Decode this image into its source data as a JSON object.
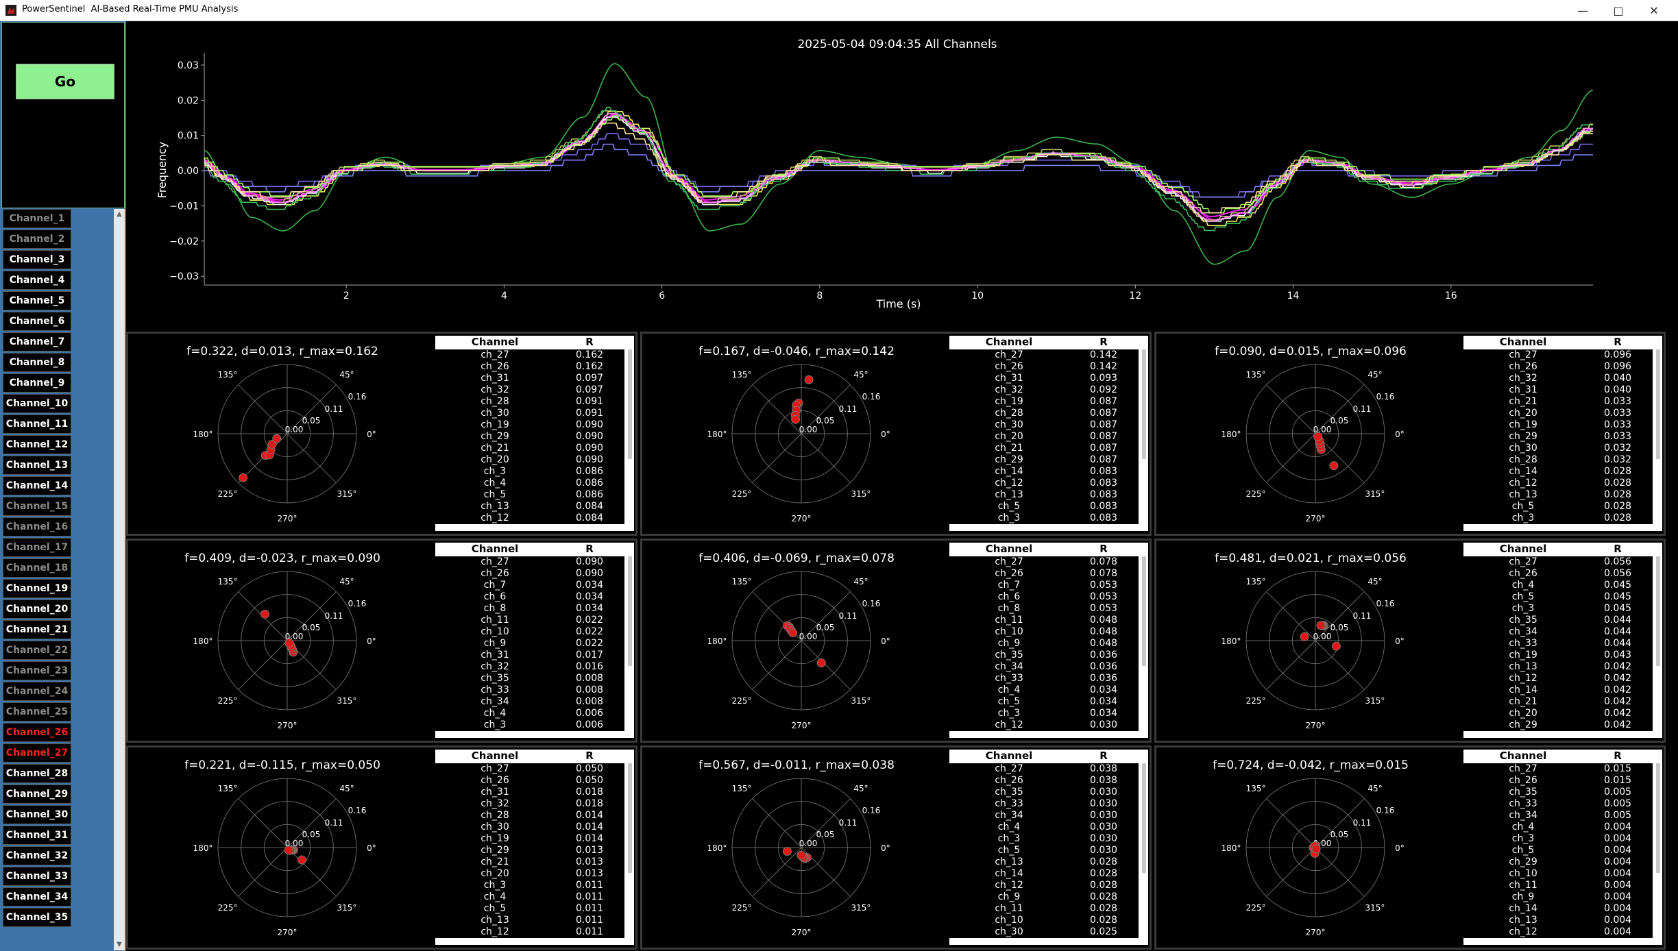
{
  "window": {
    "title": "PowerSentinel  AI-Based Real-Time PMU Analysis",
    "minimize_icon": "minimize-icon",
    "maximize_icon": "maximize-icon",
    "close_icon": "close-icon"
  },
  "go_label": "Go",
  "channels": [
    {
      "label": "Channel_1",
      "state": "disabled"
    },
    {
      "label": "Channel_2",
      "state": "disabled"
    },
    {
      "label": "Channel_3",
      "state": "active"
    },
    {
      "label": "Channel_4",
      "state": "active"
    },
    {
      "label": "Channel_5",
      "state": "active"
    },
    {
      "label": "Channel_6",
      "state": "active"
    },
    {
      "label": "Channel_7",
      "state": "active"
    },
    {
      "label": "Channel_8",
      "state": "active"
    },
    {
      "label": "Channel_9",
      "state": "active"
    },
    {
      "label": "Channel_10",
      "state": "active"
    },
    {
      "label": "Channel_11",
      "state": "active"
    },
    {
      "label": "Channel_12",
      "state": "active"
    },
    {
      "label": "Channel_13",
      "state": "active"
    },
    {
      "label": "Channel_14",
      "state": "active"
    },
    {
      "label": "Channel_15",
      "state": "disabled"
    },
    {
      "label": "Channel_16",
      "state": "disabled"
    },
    {
      "label": "Channel_17",
      "state": "disabled"
    },
    {
      "label": "Channel_18",
      "state": "disabled"
    },
    {
      "label": "Channel_19",
      "state": "active"
    },
    {
      "label": "Channel_20",
      "state": "active"
    },
    {
      "label": "Channel_21",
      "state": "active"
    },
    {
      "label": "Channel_22",
      "state": "disabled"
    },
    {
      "label": "Channel_23",
      "state": "disabled"
    },
    {
      "label": "Channel_24",
      "state": "disabled"
    },
    {
      "label": "Channel_25",
      "state": "disabled"
    },
    {
      "label": "Channel_26",
      "state": "alarm"
    },
    {
      "label": "Channel_27",
      "state": "alarm"
    },
    {
      "label": "Channel_28",
      "state": "active"
    },
    {
      "label": "Channel_29",
      "state": "active"
    },
    {
      "label": "Channel_30",
      "state": "active"
    },
    {
      "label": "Channel_31",
      "state": "active"
    },
    {
      "label": "Channel_32",
      "state": "active"
    },
    {
      "label": "Channel_33",
      "state": "active"
    },
    {
      "label": "Channel_34",
      "state": "active"
    },
    {
      "label": "Channel_35",
      "state": "active"
    }
  ],
  "channel_colors": {
    "active": "#ffffff",
    "disabled": "#8a8a8a",
    "alarm": "#ff2020"
  },
  "chart_data": {
    "type": "line",
    "title": "2025-05-04 09:04:35    All Channels",
    "xlabel": "Time (s)",
    "ylabel": "Frequency",
    "xlim": [
      0.2,
      17.8
    ],
    "ylim": [
      -0.0325,
      0.0335
    ],
    "xticks": [
      2,
      4,
      6,
      8,
      10,
      12,
      14,
      16
    ],
    "yticks": [
      -0.03,
      -0.02,
      -0.01,
      0.0,
      0.01,
      0.02,
      0.03
    ],
    "ytick_labels": [
      "−0.03",
      "−0.02",
      "−0.01",
      "0.00",
      "0.01",
      "0.02",
      "0.03"
    ],
    "grid": false,
    "base_x": [
      0.2,
      0.5,
      0.8,
      1.2,
      1.6,
      2.0,
      2.5,
      3.0,
      3.5,
      4.0,
      4.5,
      5.0,
      5.4,
      5.8,
      6.2,
      6.6,
      7.0,
      7.5,
      8.0,
      8.5,
      9.0,
      9.5,
      10.0,
      10.5,
      11.0,
      11.5,
      12.0,
      12.5,
      13.0,
      13.4,
      13.8,
      14.2,
      14.6,
      15.0,
      15.5,
      16.0,
      16.5,
      17.0,
      17.4,
      17.8
    ],
    "base_y": [
      0.003,
      -0.002,
      -0.007,
      -0.009,
      -0.006,
      0.0,
      0.002,
      0.0,
      0.0,
      0.001,
      0.002,
      0.008,
      0.016,
      0.011,
      -0.002,
      -0.009,
      -0.008,
      -0.002,
      0.003,
      0.002,
      0.001,
      0.0,
      0.001,
      0.003,
      0.005,
      0.004,
      0.001,
      -0.006,
      -0.014,
      -0.012,
      -0.004,
      0.003,
      0.002,
      -0.002,
      -0.004,
      -0.002,
      0.0,
      0.002,
      0.006,
      0.012
    ],
    "series": [
      {
        "color": "#3cb44b",
        "scale": 1.9,
        "shift": 0.0,
        "step": 0.0
      },
      {
        "color": "#7b68ee",
        "scale": 0.6,
        "shift": 0.001,
        "step": 0.0015
      },
      {
        "color": "#8080ff",
        "scale": 0.5,
        "shift": -0.002,
        "step": 0.0015
      },
      {
        "color": "#ff00ff",
        "scale": 1.0,
        "shift": 0.0,
        "step": 0.0
      },
      {
        "color": "#e020e0",
        "scale": 0.95,
        "shift": 0.0005,
        "step": 0.0
      },
      {
        "color": "#c0c060",
        "scale": 1.05,
        "shift": 0.001,
        "step": 0.001
      },
      {
        "color": "#f0f060",
        "scale": 1.1,
        "shift": -0.0005,
        "step": 0.0012
      },
      {
        "color": "#ffffff",
        "scale": 1.0,
        "shift": -0.001,
        "step": 0.0008
      },
      {
        "color": "#40c060",
        "scale": 1.15,
        "shift": -0.0015,
        "step": 0.001
      },
      {
        "color": "#a0ff60",
        "scale": 0.9,
        "shift": 0.0015,
        "step": 0.0012
      },
      {
        "color": "#ff8cff",
        "scale": 1.02,
        "shift": 0.0,
        "step": 0.0006
      },
      {
        "color": "#ffe0a0",
        "scale": 0.85,
        "shift": 0.0,
        "step": 0.0015
      }
    ]
  },
  "polar_axis": {
    "r_tick_labels": [
      "0.00",
      "0.05",
      "0.11",
      "0.16"
    ],
    "angle_labels": [
      "0°",
      "45°",
      "135°",
      "180°",
      "225°",
      "270°",
      "315°"
    ],
    "point_color": "#e01818"
  },
  "panels": [
    {
      "title": "f=0.322, d=0.013, r_max=0.162",
      "points": [
        [
          0.162,
          225
        ],
        [
          0.08,
          225
        ],
        [
          0.072,
          230
        ],
        [
          0.06,
          225
        ],
        [
          0.048,
          215
        ],
        [
          0.03,
          205
        ]
      ],
      "headers": [
        "Channel",
        "R"
      ],
      "rows": [
        [
          "ch_27",
          "0.162"
        ],
        [
          "ch_26",
          "0.162"
        ],
        [
          "ch_31",
          "0.097"
        ],
        [
          "ch_32",
          "0.097"
        ],
        [
          "ch_28",
          "0.091"
        ],
        [
          "ch_30",
          "0.091"
        ],
        [
          "ch_19",
          "0.090"
        ],
        [
          "ch_29",
          "0.090"
        ],
        [
          "ch_21",
          "0.090"
        ],
        [
          "ch_20",
          "0.090"
        ],
        [
          "ch_3",
          "0.086"
        ],
        [
          "ch_4",
          "0.086"
        ],
        [
          "ch_5",
          "0.086"
        ],
        [
          "ch_13",
          "0.084"
        ],
        [
          "ch_12",
          "0.084"
        ]
      ]
    },
    {
      "title": "f=0.167, d=-0.046, r_max=0.142",
      "points": [
        [
          0.142,
          82
        ],
        [
          0.08,
          95
        ],
        [
          0.075,
          100
        ],
        [
          0.062,
          102
        ],
        [
          0.05,
          108
        ],
        [
          0.04,
          112
        ]
      ],
      "headers": [
        "Channel",
        "R"
      ],
      "rows": [
        [
          "ch_27",
          "0.142"
        ],
        [
          "ch_26",
          "0.142"
        ],
        [
          "ch_31",
          "0.093"
        ],
        [
          "ch_32",
          "0.092"
        ],
        [
          "ch_19",
          "0.087"
        ],
        [
          "ch_28",
          "0.087"
        ],
        [
          "ch_30",
          "0.087"
        ],
        [
          "ch_20",
          "0.087"
        ],
        [
          "ch_21",
          "0.087"
        ],
        [
          "ch_29",
          "0.087"
        ],
        [
          "ch_14",
          "0.083"
        ],
        [
          "ch_12",
          "0.083"
        ],
        [
          "ch_13",
          "0.083"
        ],
        [
          "ch_5",
          "0.083"
        ],
        [
          "ch_3",
          "0.083"
        ]
      ]
    },
    {
      "title": "f=0.090, d=0.015, r_max=0.096",
      "points": [
        [
          0.096,
          300
        ],
        [
          0.044,
          290
        ],
        [
          0.036,
          292
        ],
        [
          0.028,
          295
        ],
        [
          0.02,
          300
        ],
        [
          0.01,
          310
        ]
      ],
      "headers": [
        "Channel",
        "R"
      ],
      "rows": [
        [
          "ch_27",
          "0.096"
        ],
        [
          "ch_26",
          "0.096"
        ],
        [
          "ch_32",
          "0.040"
        ],
        [
          "ch_31",
          "0.040"
        ],
        [
          "ch_21",
          "0.033"
        ],
        [
          "ch_20",
          "0.033"
        ],
        [
          "ch_19",
          "0.033"
        ],
        [
          "ch_29",
          "0.033"
        ],
        [
          "ch_30",
          "0.032"
        ],
        [
          "ch_28",
          "0.032"
        ],
        [
          "ch_14",
          "0.028"
        ],
        [
          "ch_12",
          "0.028"
        ],
        [
          "ch_13",
          "0.028"
        ],
        [
          "ch_5",
          "0.028"
        ],
        [
          "ch_3",
          "0.028"
        ]
      ]
    },
    {
      "title": "f=0.409, d=-0.023, r_max=0.090",
      "points": [
        [
          0.09,
          130
        ],
        [
          0.034,
          298
        ],
        [
          0.028,
          300
        ],
        [
          0.022,
          302
        ],
        [
          0.016,
          305
        ],
        [
          0.008,
          310
        ]
      ],
      "headers": [
        "Channel",
        "R"
      ],
      "rows": [
        [
          "ch_27",
          "0.090"
        ],
        [
          "ch_26",
          "0.090"
        ],
        [
          "ch_7",
          "0.034"
        ],
        [
          "ch_6",
          "0.034"
        ],
        [
          "ch_8",
          "0.034"
        ],
        [
          "ch_11",
          "0.022"
        ],
        [
          "ch_10",
          "0.022"
        ],
        [
          "ch_9",
          "0.022"
        ],
        [
          "ch_31",
          "0.017"
        ],
        [
          "ch_32",
          "0.016"
        ],
        [
          "ch_35",
          "0.008"
        ],
        [
          "ch_33",
          "0.008"
        ],
        [
          "ch_34",
          "0.008"
        ],
        [
          "ch_4",
          "0.006"
        ],
        [
          "ch_3",
          "0.006"
        ]
      ]
    },
    {
      "title": "f=0.406, d=-0.069, r_max=0.078",
      "points": [
        [
          0.078,
          312
        ],
        [
          0.053,
          133
        ],
        [
          0.048,
          131
        ],
        [
          0.043,
          133
        ],
        [
          0.036,
          135
        ],
        [
          0.03,
          137
        ]
      ],
      "headers": [
        "Channel",
        "R"
      ],
      "rows": [
        [
          "ch_27",
          "0.078"
        ],
        [
          "ch_26",
          "0.078"
        ],
        [
          "ch_7",
          "0.053"
        ],
        [
          "ch_6",
          "0.053"
        ],
        [
          "ch_8",
          "0.053"
        ],
        [
          "ch_11",
          "0.048"
        ],
        [
          "ch_10",
          "0.048"
        ],
        [
          "ch_9",
          "0.048"
        ],
        [
          "ch_35",
          "0.036"
        ],
        [
          "ch_34",
          "0.036"
        ],
        [
          "ch_33",
          "0.036"
        ],
        [
          "ch_4",
          "0.034"
        ],
        [
          "ch_5",
          "0.034"
        ],
        [
          "ch_3",
          "0.034"
        ],
        [
          "ch_12",
          "0.030"
        ]
      ]
    },
    {
      "title": "f=0.481, d=0.021, r_max=0.056",
      "points": [
        [
          0.056,
          345
        ],
        [
          0.045,
          60
        ],
        [
          0.044,
          64
        ],
        [
          0.043,
          66
        ],
        [
          0.042,
          70
        ],
        [
          0.03,
          160
        ]
      ],
      "headers": [
        "Channel",
        "R"
      ],
      "rows": [
        [
          "ch_27",
          "0.056"
        ],
        [
          "ch_26",
          "0.056"
        ],
        [
          "ch_4",
          "0.045"
        ],
        [
          "ch_5",
          "0.045"
        ],
        [
          "ch_3",
          "0.045"
        ],
        [
          "ch_35",
          "0.044"
        ],
        [
          "ch_34",
          "0.044"
        ],
        [
          "ch_33",
          "0.044"
        ],
        [
          "ch_19",
          "0.043"
        ],
        [
          "ch_13",
          "0.042"
        ],
        [
          "ch_12",
          "0.042"
        ],
        [
          "ch_14",
          "0.042"
        ],
        [
          "ch_21",
          "0.042"
        ],
        [
          "ch_20",
          "0.042"
        ],
        [
          "ch_29",
          "0.042"
        ]
      ]
    },
    {
      "title": "f=0.221, d=-0.115, r_max=0.050",
      "points": [
        [
          0.05,
          320
        ],
        [
          0.018,
          340
        ],
        [
          0.015,
          335
        ],
        [
          0.013,
          330
        ],
        [
          0.011,
          320
        ],
        [
          0.008,
          300
        ]
      ],
      "headers": [
        "Channel",
        "R"
      ],
      "rows": [
        [
          "ch_27",
          "0.050"
        ],
        [
          "ch_26",
          "0.050"
        ],
        [
          "ch_31",
          "0.018"
        ],
        [
          "ch_32",
          "0.018"
        ],
        [
          "ch_28",
          "0.014"
        ],
        [
          "ch_30",
          "0.014"
        ],
        [
          "ch_19",
          "0.014"
        ],
        [
          "ch_29",
          "0.013"
        ],
        [
          "ch_21",
          "0.013"
        ],
        [
          "ch_20",
          "0.013"
        ],
        [
          "ch_3",
          "0.011"
        ],
        [
          "ch_4",
          "0.011"
        ],
        [
          "ch_5",
          "0.011"
        ],
        [
          "ch_13",
          "0.011"
        ],
        [
          "ch_12",
          "0.011"
        ]
      ]
    },
    {
      "title": "f=0.567, d=-0.011, r_max=0.038",
      "points": [
        [
          0.038,
          195
        ],
        [
          0.03,
          300
        ],
        [
          0.03,
          290
        ],
        [
          0.028,
          285
        ],
        [
          0.025,
          280
        ],
        [
          0.02,
          270
        ]
      ],
      "headers": [
        "Channel",
        "R"
      ],
      "rows": [
        [
          "ch_27",
          "0.038"
        ],
        [
          "ch_26",
          "0.038"
        ],
        [
          "ch_35",
          "0.030"
        ],
        [
          "ch_33",
          "0.030"
        ],
        [
          "ch_34",
          "0.030"
        ],
        [
          "ch_4",
          "0.030"
        ],
        [
          "ch_3",
          "0.030"
        ],
        [
          "ch_5",
          "0.030"
        ],
        [
          "ch_13",
          "0.028"
        ],
        [
          "ch_14",
          "0.028"
        ],
        [
          "ch_12",
          "0.028"
        ],
        [
          "ch_9",
          "0.028"
        ],
        [
          "ch_11",
          "0.028"
        ],
        [
          "ch_10",
          "0.028"
        ],
        [
          "ch_30",
          "0.025"
        ]
      ]
    },
    {
      "title": "f=0.724, d=-0.042, r_max=0.015",
      "points": [
        [
          0.015,
          265
        ],
        [
          0.005,
          80
        ],
        [
          0.005,
          200
        ],
        [
          0.005,
          170
        ],
        [
          0.004,
          120
        ],
        [
          0.004,
          300
        ]
      ],
      "headers": [
        "Channel",
        "R"
      ],
      "rows": [
        [
          "ch_27",
          "0.015"
        ],
        [
          "ch_26",
          "0.015"
        ],
        [
          "ch_35",
          "0.005"
        ],
        [
          "ch_33",
          "0.005"
        ],
        [
          "ch_34",
          "0.005"
        ],
        [
          "ch_4",
          "0.004"
        ],
        [
          "ch_3",
          "0.004"
        ],
        [
          "ch_5",
          "0.004"
        ],
        [
          "ch_29",
          "0.004"
        ],
        [
          "ch_10",
          "0.004"
        ],
        [
          "ch_11",
          "0.004"
        ],
        [
          "ch_9",
          "0.004"
        ],
        [
          "ch_14",
          "0.004"
        ],
        [
          "ch_13",
          "0.004"
        ],
        [
          "ch_12",
          "0.004"
        ]
      ]
    }
  ]
}
